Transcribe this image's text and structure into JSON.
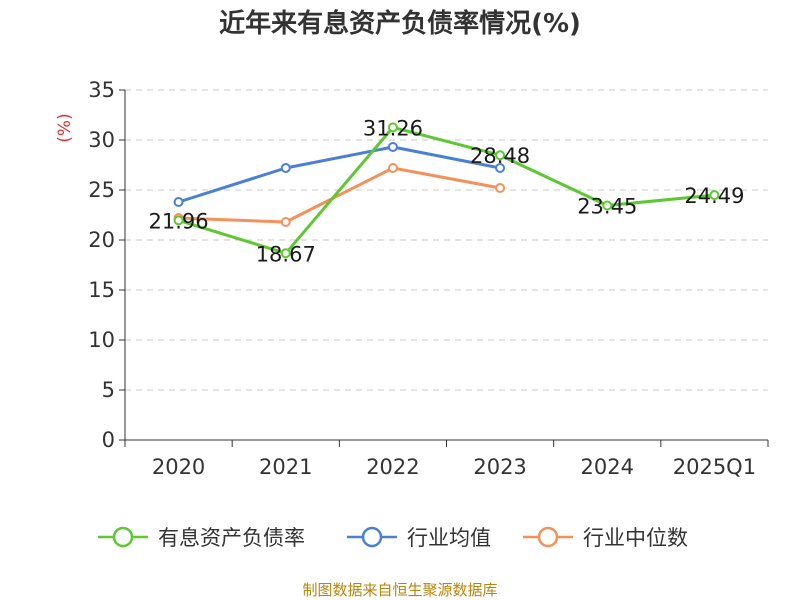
{
  "chart_data": {
    "type": "line",
    "title": "近年来有息资产负债率情况(%)",
    "ylabel": "(%)",
    "xlabel": "",
    "ylim": [
      0,
      35
    ],
    "yticks": [
      "0",
      "5",
      "10",
      "15",
      "20",
      "25",
      "30",
      "35"
    ],
    "categories": [
      "2020",
      "2021",
      "2022",
      "2023",
      "2024",
      "2025Q1"
    ],
    "grid": true,
    "legend_position": "bottom",
    "series": [
      {
        "name": "有息资产负债率",
        "color": "#5dc832",
        "values": [
          21.96,
          18.67,
          31.26,
          28.48,
          23.45,
          24.49
        ],
        "labels": [
          "21.96",
          "18.67",
          "31.26",
          "28.48",
          "23.45",
          "24.49"
        ]
      },
      {
        "name": "行业均值",
        "color": "#4a7fd6",
        "values": [
          23.8,
          27.2,
          29.3,
          27.2,
          null,
          null
        ]
      },
      {
        "name": "行业中位数",
        "color": "#f5905a",
        "values": [
          22.2,
          21.8,
          27.2,
          25.2,
          null,
          null
        ]
      }
    ],
    "source": "制图数据来自恒生聚源数据库"
  }
}
